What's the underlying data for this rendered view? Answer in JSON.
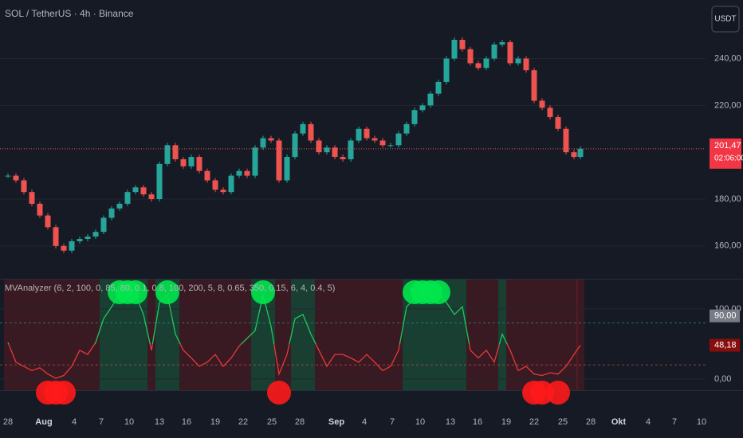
{
  "chart_data": [
    {
      "type": "candlestick",
      "title": "SOL / TetherUS · 4h · Binance",
      "currency": "USDT",
      "values": [
        190,
        188,
        183,
        178,
        173,
        168,
        160,
        158,
        162,
        163,
        164,
        166,
        172,
        176,
        178,
        183,
        185,
        182,
        180,
        195,
        203,
        197,
        194,
        198,
        192,
        188,
        184,
        183,
        190,
        192,
        190,
        202,
        206,
        205,
        188,
        198,
        208,
        212,
        205,
        200,
        202,
        198,
        197,
        205,
        210,
        206,
        205,
        203,
        203,
        208,
        212,
        218,
        220,
        225,
        230,
        240,
        248,
        244,
        238,
        236,
        240,
        246,
        247,
        238,
        240,
        235,
        222,
        219,
        215,
        210,
        200,
        198,
        201.47
      ],
      "ylim": [
        146,
        265
      ],
      "yticks": [
        {
          "value": 160,
          "label": "160,00"
        },
        {
          "value": 180,
          "label": "180,00"
        },
        {
          "value": 220,
          "label": "220,00"
        },
        {
          "value": 240,
          "label": "240,00"
        }
      ],
      "last_value": {
        "value": 201.47,
        "label": "201,47"
      },
      "countdown": "02:06:00",
      "up_color": "#26a69a",
      "down_color": "#ef5350",
      "x_labels": [
        "28",
        "Aug",
        "4",
        "7",
        "10",
        "13",
        "16",
        "19",
        "22",
        "25",
        "28",
        "Sep",
        "4",
        "7",
        "10",
        "13",
        "16",
        "19",
        "22",
        "25",
        "28",
        "Okt",
        "4",
        "7",
        "10"
      ]
    },
    {
      "type": "oscillator",
      "title": "MVAnalyzer (6, 2, 100, 0, 85, 80, 0.1, 0.8, 100, 200, 5, 8, 0.65, 350, 0.15, 6, 4, 0.4, 5)",
      "values": [
        52,
        24,
        18,
        12,
        16,
        7,
        1,
        5,
        18,
        41,
        35,
        52,
        86,
        103,
        120,
        130,
        120,
        92,
        41,
        109,
        120,
        64,
        41,
        30,
        18,
        24,
        35,
        18,
        30,
        47,
        58,
        69,
        120,
        75,
        7,
        35,
        86,
        92,
        64,
        41,
        18,
        35,
        35,
        30,
        24,
        35,
        24,
        12,
        18,
        41,
        103,
        115,
        126,
        120,
        123,
        109,
        92,
        103,
        41,
        30,
        41,
        24,
        64,
        41,
        12,
        18,
        7,
        5,
        9,
        7,
        18,
        35,
        48.18
      ],
      "ylim": [
        -16,
        143
      ],
      "yticks": [
        {
          "value": 0,
          "label": "0,00"
        },
        {
          "value": 100,
          "label": "100,00"
        }
      ],
      "levels": [
        80,
        20
      ],
      "level_label": {
        "value": 90,
        "label": "90,00"
      },
      "last_value": {
        "value": 48.18,
        "label": "48,18"
      },
      "up_color": "#22c55e",
      "down_color": "#e53935"
    }
  ]
}
